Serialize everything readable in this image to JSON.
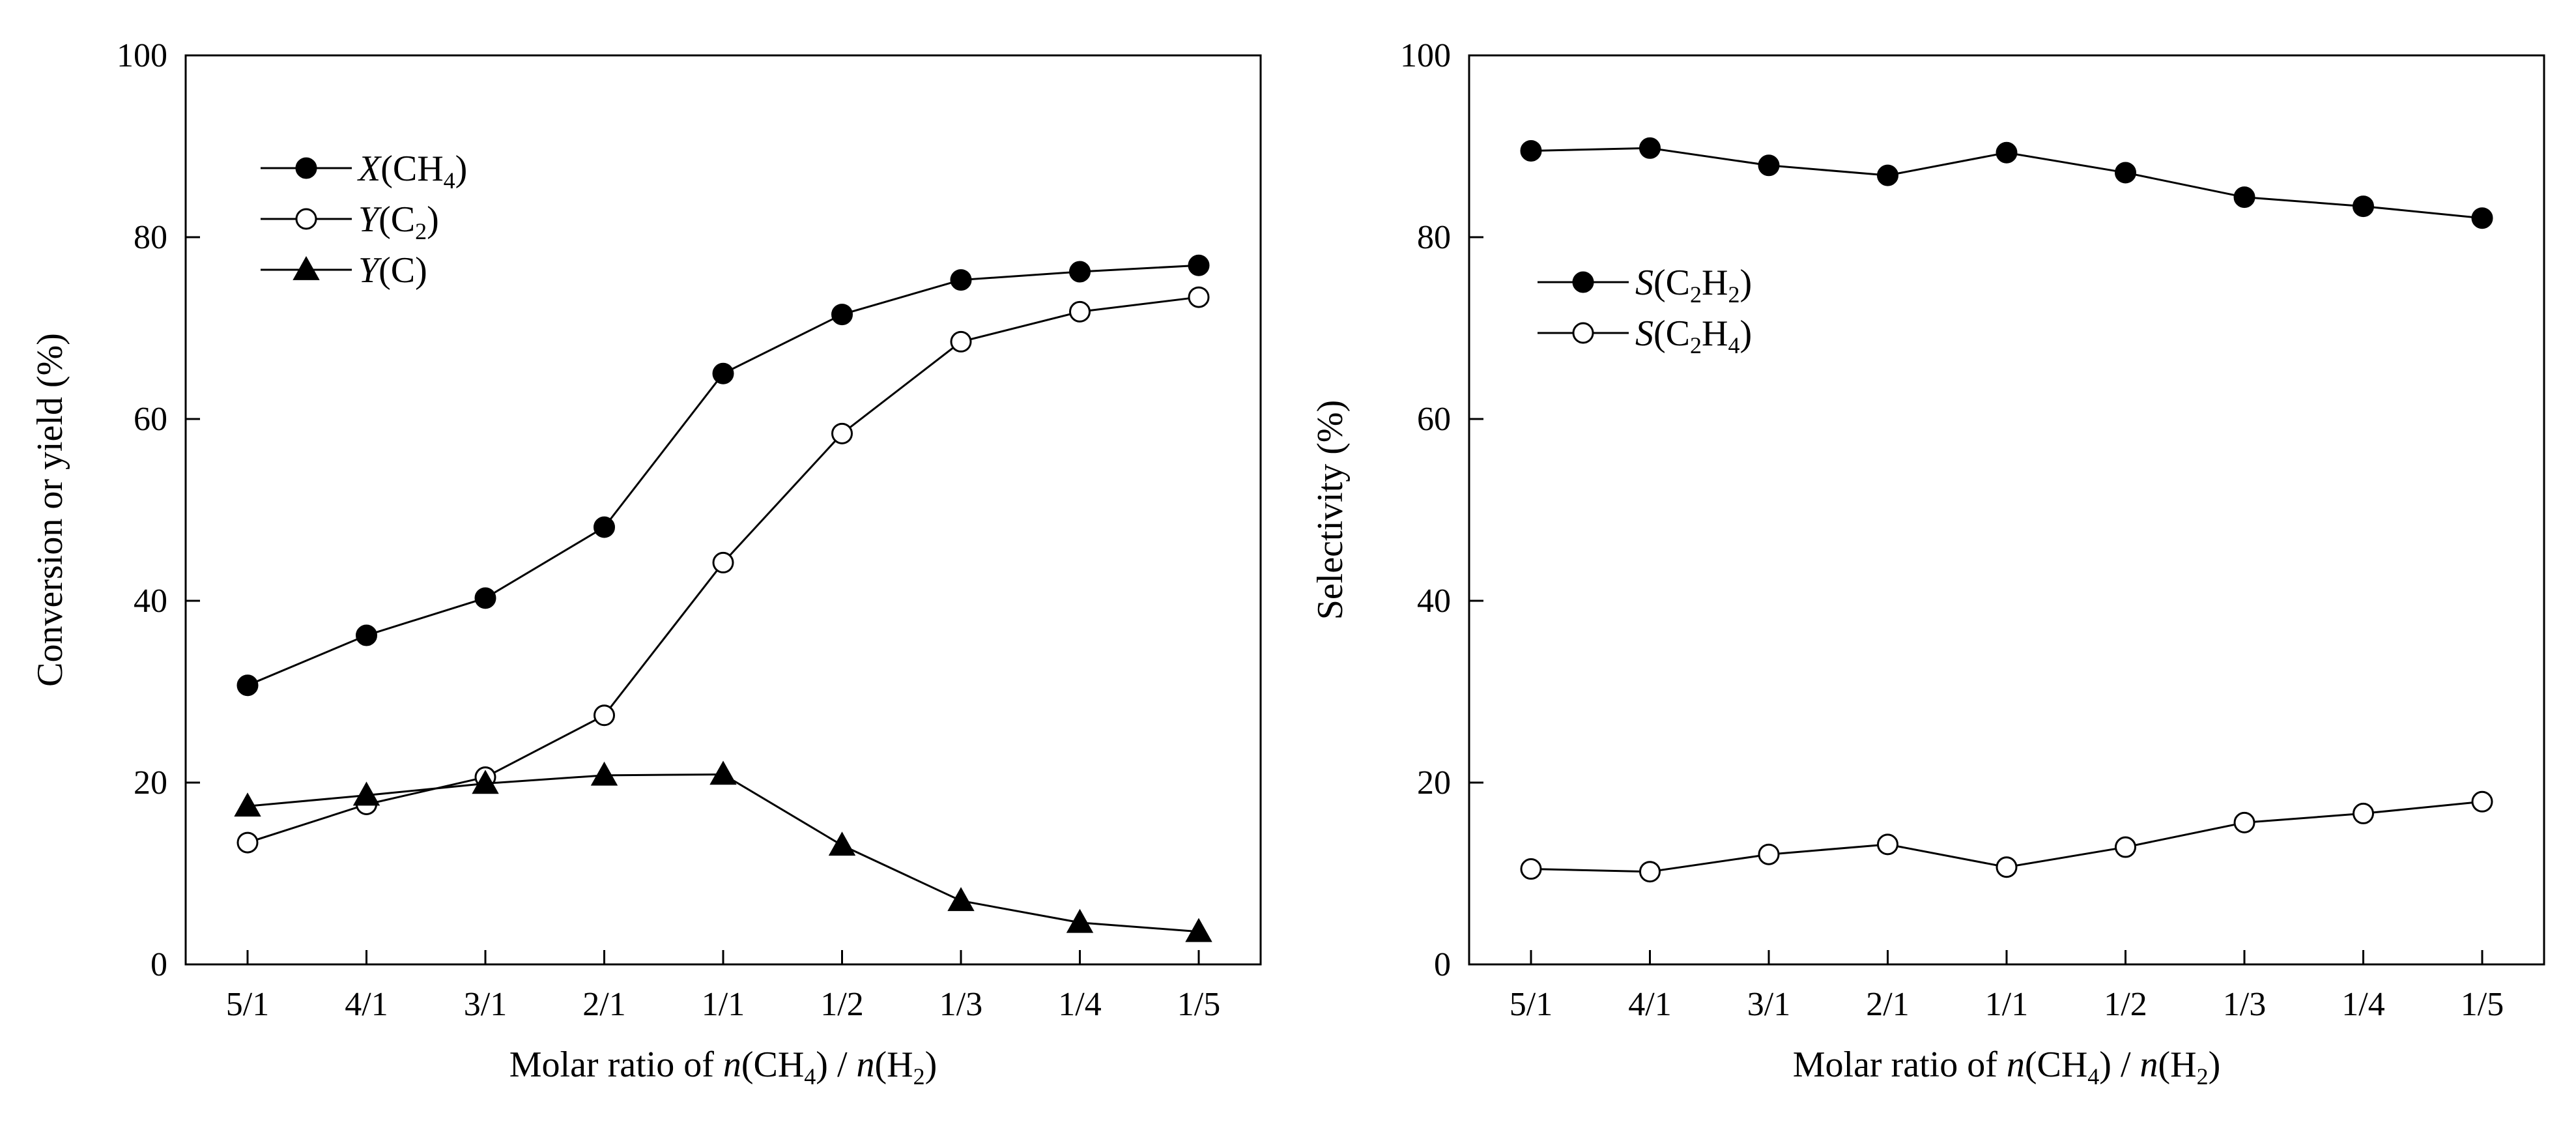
{
  "chart_data": [
    {
      "type": "line",
      "categories": [
        "5/1",
        "4/1",
        "3/1",
        "2/1",
        "1/1",
        "1/2",
        "1/3",
        "1/4",
        "1/5"
      ],
      "ylabel": "Conversion or yield (%)",
      "xlabel": "Molar ratio of n(CH4) / n(H2)",
      "xlabel_parts": {
        "prefix": "Molar ratio of ",
        "n": "n",
        "ch": "(CH",
        "four": "4",
        "close_slash": ") / ",
        "h": "(H",
        "two": "2",
        "close": ")"
      },
      "ylim": [
        0,
        100
      ],
      "yticks": [
        0,
        20,
        40,
        60,
        80,
        100
      ],
      "legend_position": "top-left",
      "series": [
        {
          "name": "X(CH4)",
          "label_parts": {
            "italic": "X",
            "main": "(CH",
            "sub": "4",
            "end": ")"
          },
          "marker": "filled-circle",
          "values": [
            30.7,
            36.2,
            40.3,
            48.1,
            65.0,
            71.5,
            75.3,
            76.2,
            76.9
          ]
        },
        {
          "name": "Y(C2)",
          "label_parts": {
            "italic": "Y",
            "main": "(C",
            "sub": "2",
            "end": ")"
          },
          "marker": "open-circle",
          "values": [
            13.4,
            17.6,
            20.6,
            27.4,
            44.2,
            58.4,
            68.5,
            71.8,
            73.4
          ]
        },
        {
          "name": "Y(C)",
          "label_parts": {
            "italic": "Y",
            "main": "(C)",
            "sub": "",
            "end": ""
          },
          "marker": "filled-triangle",
          "values": [
            17.4,
            18.6,
            19.9,
            20.8,
            20.9,
            13.1,
            7.0,
            4.6,
            3.6
          ]
        }
      ]
    },
    {
      "type": "line",
      "categories": [
        "5/1",
        "4/1",
        "3/1",
        "2/1",
        "1/1",
        "1/2",
        "1/3",
        "1/4",
        "1/5"
      ],
      "ylabel": "Selectivity (%)",
      "xlabel": "Molar ratio of n(CH4) / n(H2)",
      "xlabel_parts": {
        "prefix": "Molar ratio of ",
        "n": "n",
        "ch": "(CH",
        "four": "4",
        "close_slash": ") / ",
        "h": "(H",
        "two": "2",
        "close": ")"
      },
      "ylim": [
        0,
        100
      ],
      "yticks": [
        0,
        20,
        40,
        60,
        80,
        100
      ],
      "legend_position": "middle-left",
      "series": [
        {
          "name": "S(C2H2)",
          "label_parts": {
            "italic": "S",
            "main": "(C",
            "sub": "2",
            "mid": "H",
            "sub2": "2",
            "end": ")"
          },
          "marker": "filled-circle",
          "values": [
            89.5,
            89.8,
            87.9,
            86.8,
            89.3,
            87.1,
            84.4,
            83.4,
            82.1
          ]
        },
        {
          "name": "S(C2H4)",
          "label_parts": {
            "italic": "S",
            "main": "(C",
            "sub": "2",
            "mid": "H",
            "sub2": "4",
            "end": ")"
          },
          "marker": "open-circle",
          "values": [
            10.5,
            10.2,
            12.1,
            13.2,
            10.7,
            12.9,
            15.6,
            16.6,
            17.9
          ]
        }
      ]
    }
  ]
}
